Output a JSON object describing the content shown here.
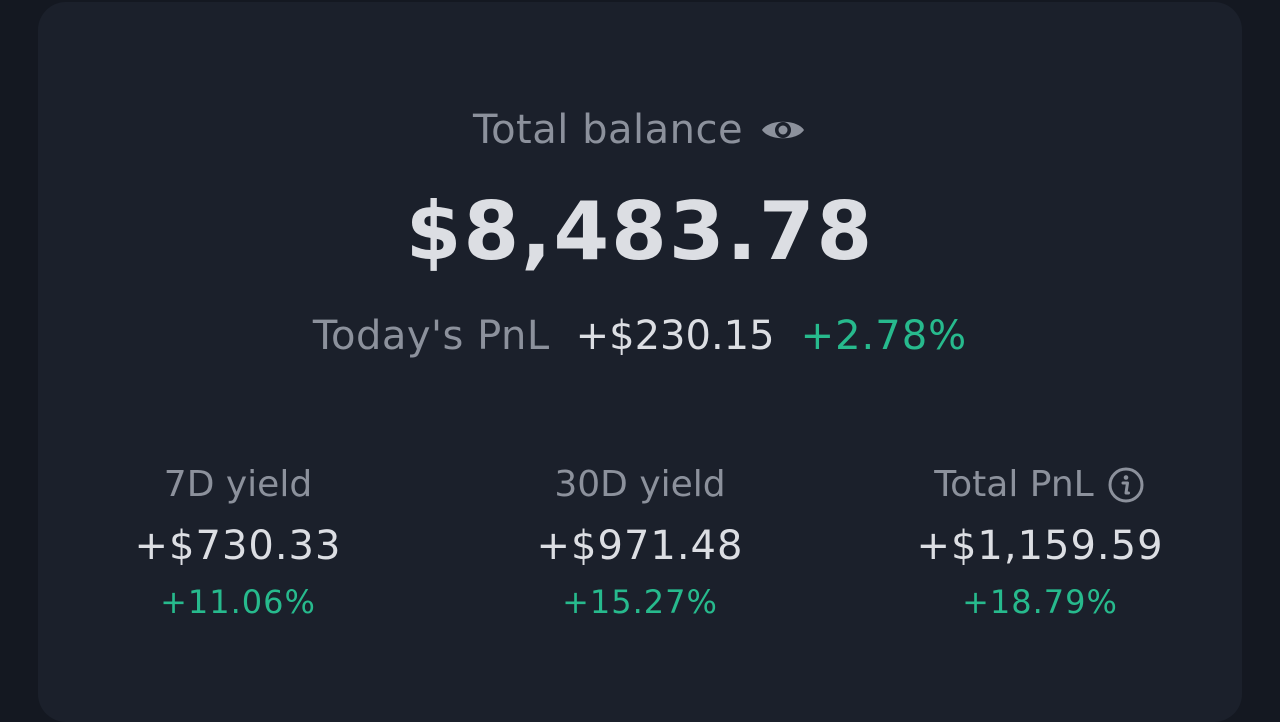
{
  "balance": {
    "label": "Total balance",
    "amount": "$8,483.78",
    "visibility_icon": "eye-icon"
  },
  "todays_pnl": {
    "label": "Today's PnL",
    "amount": "+$230.15",
    "percent": "+2.78%"
  },
  "stats": [
    {
      "label": "7D yield",
      "value": "+$730.33",
      "percent": "+11.06%"
    },
    {
      "label": "30D yield",
      "value": "+$971.48",
      "percent": "+15.27%"
    },
    {
      "label": "Total PnL",
      "value": "+$1,159.59",
      "percent": "+18.79%",
      "icon": "info-icon"
    }
  ],
  "colors": {
    "background": "#141821",
    "card": "#1b202b",
    "muted_text": "#8c919c",
    "primary_text": "#dcdee3",
    "positive": "#27ba8d"
  }
}
